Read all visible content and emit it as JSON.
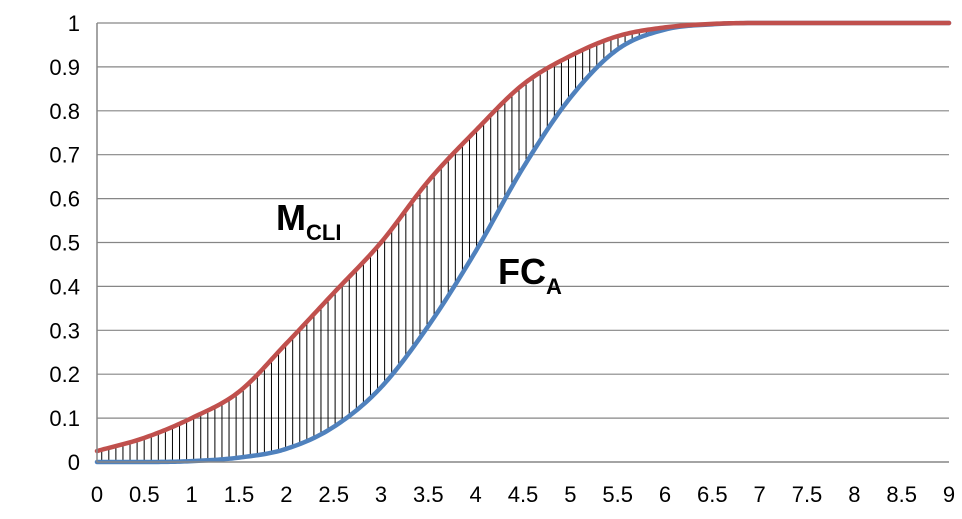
{
  "chart_data": {
    "type": "area",
    "title": "",
    "xlabel": "",
    "ylabel": "",
    "xlim": [
      0,
      9
    ],
    "ylim": [
      0,
      1
    ],
    "x_ticks": [
      "0",
      "0.5",
      "1",
      "1.5",
      "2",
      "2.5",
      "3",
      "3.5",
      "4",
      "4.5",
      "5",
      "5.5",
      "6",
      "6.5",
      "7",
      "7.5",
      "8",
      "8.5",
      "9"
    ],
    "y_ticks": [
      "0",
      "0.1",
      "0.2",
      "0.3",
      "0.4",
      "0.5",
      "0.6",
      "0.7",
      "0.8",
      "0.9",
      "1"
    ],
    "grid": "horizontal",
    "shading": "vertical hatching between the two curves",
    "x": [
      0,
      0.5,
      1,
      1.5,
      2,
      2.5,
      3,
      3.5,
      4,
      4.5,
      5,
      5.5,
      6,
      6.5,
      7,
      7.5,
      8,
      8.5,
      9
    ],
    "series": [
      {
        "name": "M_CLI",
        "color": "#c0504d",
        "values": [
          0.025,
          0.055,
          0.1,
          0.16,
          0.27,
          0.385,
          0.5,
          0.64,
          0.755,
          0.86,
          0.925,
          0.97,
          0.99,
          0.998,
          1,
          1,
          1,
          1,
          1
        ]
      },
      {
        "name": "FC_A",
        "color": "#4f81bd",
        "values": [
          0,
          0,
          0.002,
          0.01,
          0.03,
          0.08,
          0.17,
          0.31,
          0.48,
          0.67,
          0.83,
          0.94,
          0.985,
          0.997,
          1,
          1,
          1,
          1,
          1
        ]
      }
    ],
    "annotations": [
      {
        "label": "M",
        "subscript": "CLI",
        "series": "M_CLI"
      },
      {
        "label": "FC",
        "subscript": "A",
        "series": "FC_A"
      }
    ]
  }
}
